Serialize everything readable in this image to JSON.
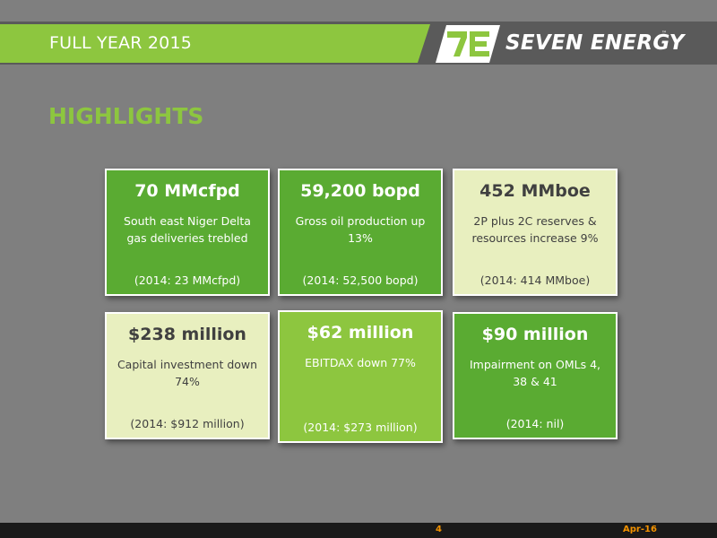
{
  "header": {
    "title": "FULL YEAR 2015",
    "logo_text": "SEVEN ENERGY",
    "logo_tm": "™"
  },
  "heading": "HIGHLIGHTS",
  "cards": [
    {
      "title": "70 MMcfpd",
      "body": "South east Niger Delta gas deliveries trebled",
      "foot": "(2014: 23 MMcfpd)"
    },
    {
      "title": "59,200 bopd",
      "body": "Gross oil production up 13%",
      "foot": "(2014: 52,500 bopd)"
    },
    {
      "title": "452 MMboe",
      "body": "2P plus 2C reserves & resources increase 9%",
      "foot": "(2014: 414 MMboe)"
    },
    {
      "title": "$238 million",
      "body": "Capital investment down 74%",
      "foot": "(2014: $912 million)"
    },
    {
      "title": "$62 million",
      "body": "EBITDAX down 77%",
      "foot": "(2014: $273 million)"
    },
    {
      "title": "$90 million",
      "body": "Impairment on OMLs 4, 38 & 41",
      "foot": "(2014: nil)"
    }
  ],
  "footer": {
    "page_number": "4",
    "date": "Apr-16"
  },
  "colors": {
    "background": "#7f7f7f",
    "brand_green": "#8dc63f",
    "dark_green": "#5aab32",
    "light_green": "#e8efbf",
    "footer_accent": "#f39200"
  }
}
